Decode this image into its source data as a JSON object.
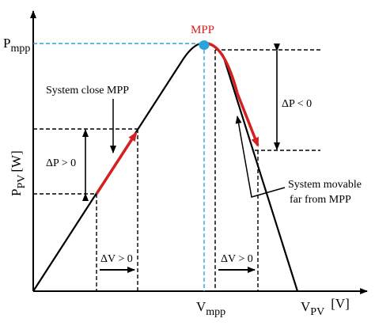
{
  "colors": {
    "curve": "#000000",
    "highlight": "#d62020",
    "mpp_marker": "#29a3d9",
    "mpp_guides": "#29a3d9",
    "background": "#ffffff"
  },
  "labels": {
    "mpp_point": "MPP",
    "p_mpp_main": "P",
    "p_mpp_sub": "mpp",
    "y_axis_main": "P",
    "y_axis_sub": "PV",
    "y_axis_unit": "[W]",
    "x_axis_main": "V",
    "x_axis_sub": "PV",
    "x_axis_unit": "[V]",
    "v_mpp_main": "V",
    "v_mpp_sub": "mpp",
    "system_close": "System close MPP",
    "system_far_line1": "System movable",
    "system_far_line2": "far from MPP",
    "delta_p_pos": "ΔP > 0",
    "delta_p_neg": "ΔP < 0",
    "delta_v_left": "ΔV > 0",
    "delta_v_right": "ΔV > 0"
  }
}
